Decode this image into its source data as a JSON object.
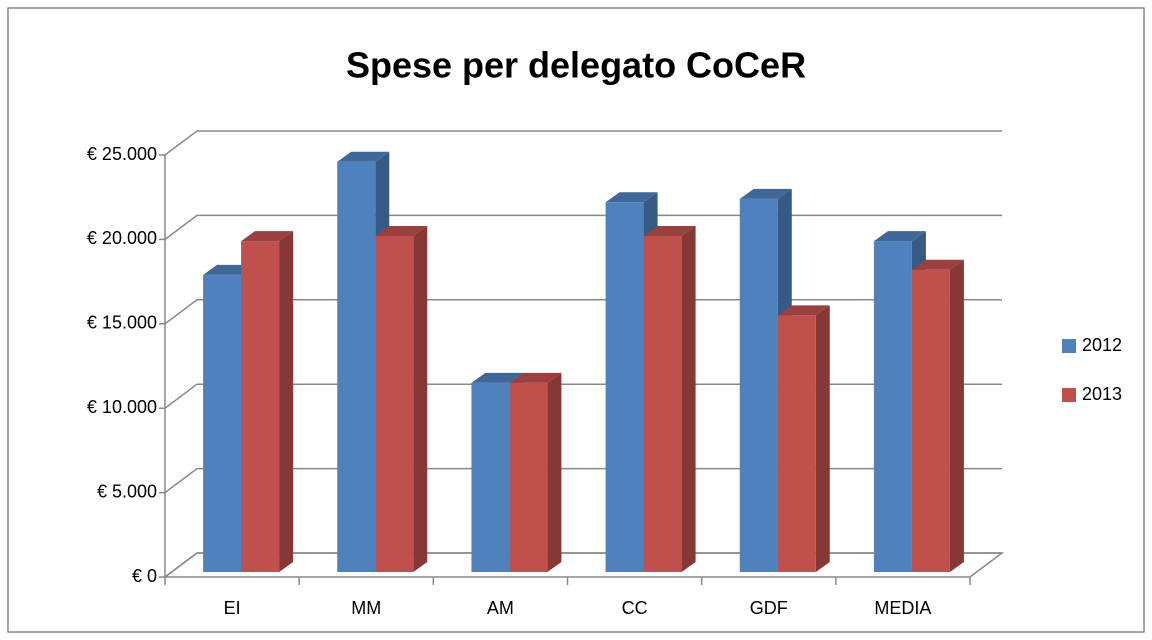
{
  "chart_data": {
    "type": "bar3d",
    "title": "Spese per delegato CoCeR",
    "categories": [
      "EI",
      "MM",
      "AM",
      "CC",
      "GDF",
      "MEDIA"
    ],
    "series": [
      {
        "name": "2012",
        "color": "#4f81bd",
        "values": [
          17900,
          24600,
          11500,
          22200,
          22400,
          19900
        ]
      },
      {
        "name": "2013",
        "color": "#c0504d",
        "values": [
          19900,
          20200,
          11500,
          20200,
          15500,
          18200
        ]
      }
    ],
    "ylim": [
      0,
      25000
    ],
    "yticks": [
      {
        "value": 0,
        "label": "€ 0"
      },
      {
        "value": 5000,
        "label": "€ 5.000"
      },
      {
        "value": 10000,
        "label": "€ 10.000"
      },
      {
        "value": 15000,
        "label": "€ 15.000"
      },
      {
        "value": 20000,
        "label": "€ 20.000"
      },
      {
        "value": 25000,
        "label": "€ 25.000"
      }
    ],
    "grid": true,
    "legend": "right"
  }
}
